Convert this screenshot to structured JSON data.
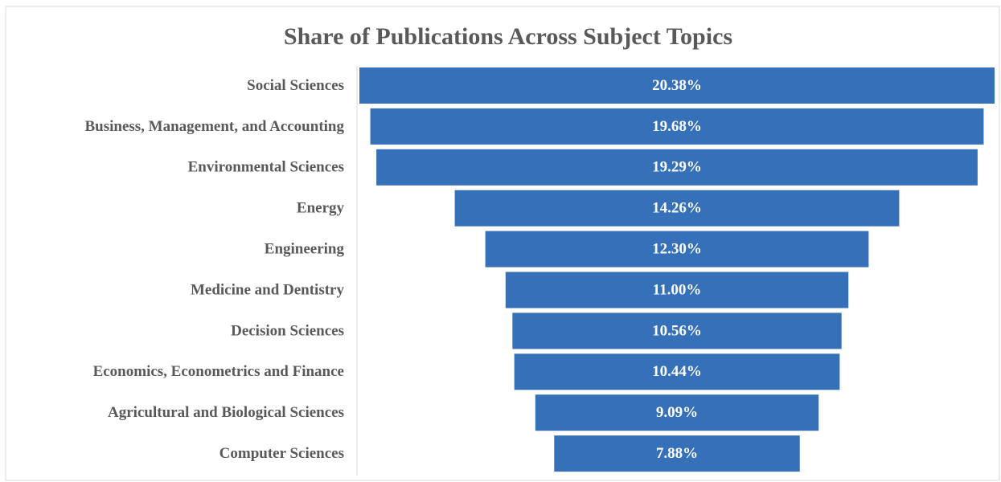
{
  "chart_data": {
    "type": "funnel",
    "title": "Share of Publications Across Subject Topics",
    "categories": [
      "Social Sciences",
      "Business, Management, and Accounting",
      "Environmental Sciences",
      "Energy",
      "Engineering",
      "Medicine and Dentistry",
      "Decision Sciences",
      "Economics, Econometrics and Finance",
      "Agricultural and Biological Sciences",
      "Computer Sciences"
    ],
    "values": [
      20.38,
      19.68,
      19.29,
      14.26,
      12.3,
      11.0,
      10.56,
      10.44,
      9.09,
      7.88
    ],
    "value_labels": [
      "20.38%",
      "19.68%",
      "19.29%",
      "14.26%",
      "12.30%",
      "11.00%",
      "10.56%",
      "10.44%",
      "9.09%",
      "7.88%"
    ],
    "color": "#3570b8"
  }
}
